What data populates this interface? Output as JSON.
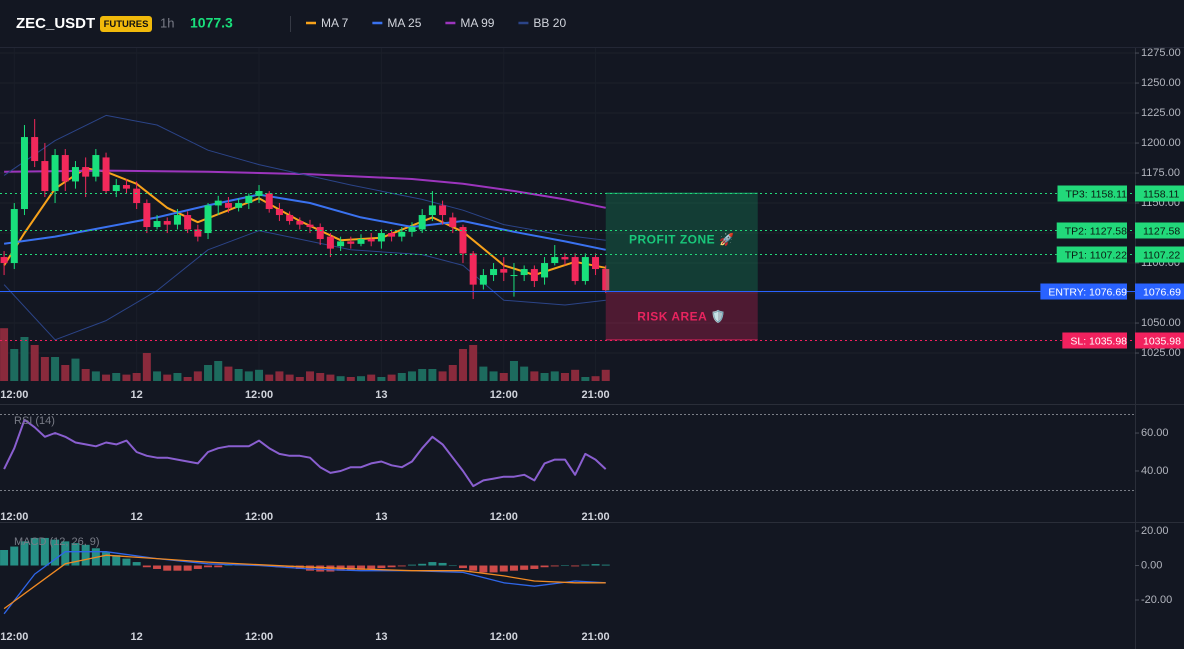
{
  "chart_data": [
    {
      "type": "candlestick",
      "title": "ZEC_USDT",
      "badge": "FUTURES",
      "interval": "1h",
      "last_price": 1077.3,
      "up_color": "#19e07c",
      "down_color": "#f2295b",
      "volume_up_color": "#1d6b5e",
      "volume_down_color": "#8a2a3c",
      "x": [
        11,
        12,
        13,
        14,
        15,
        16,
        17,
        18,
        19,
        20,
        21,
        22,
        23,
        24,
        25,
        26,
        27,
        28,
        29,
        30,
        31,
        32,
        33,
        34,
        35,
        36,
        37,
        38,
        39,
        40,
        41,
        42,
        43,
        44,
        45,
        46,
        47,
        48,
        49,
        50,
        51,
        52,
        53,
        54,
        55,
        56,
        57,
        58,
        59,
        60,
        61,
        62,
        63,
        64,
        65,
        66,
        67,
        68,
        69,
        70
      ],
      "open": [
        1105,
        1100,
        1145,
        1205,
        1185,
        1160,
        1190,
        1168,
        1180,
        1172,
        1188,
        1160,
        1165,
        1162,
        1150,
        1130,
        1135,
        1132,
        1140,
        1128,
        1125,
        1148,
        1150,
        1146,
        1150,
        1156,
        1158,
        1145,
        1140,
        1135,
        1132,
        1130,
        1122,
        1114,
        1118,
        1116,
        1120,
        1118,
        1125,
        1122,
        1126,
        1128,
        1140,
        1148,
        1138,
        1130,
        1108,
        1082,
        1090,
        1095,
        1090,
        1090,
        1095,
        1088,
        1100,
        1105,
        1105,
        1085,
        1105,
        1095
      ],
      "high": [
        1110,
        1150,
        1215,
        1220,
        1200,
        1195,
        1195,
        1185,
        1188,
        1195,
        1192,
        1170,
        1170,
        1168,
        1153,
        1140,
        1138,
        1145,
        1143,
        1132,
        1150,
        1156,
        1155,
        1154,
        1158,
        1165,
        1160,
        1150,
        1143,
        1138,
        1136,
        1133,
        1125,
        1122,
        1122,
        1124,
        1125,
        1128,
        1128,
        1130,
        1134,
        1145,
        1160,
        1152,
        1142,
        1132,
        1110,
        1095,
        1100,
        1105,
        1100,
        1098,
        1098,
        1105,
        1115,
        1108,
        1108,
        1108,
        1108,
        1098
      ],
      "low": [
        1090,
        1095,
        1140,
        1180,
        1155,
        1150,
        1160,
        1162,
        1155,
        1168,
        1158,
        1155,
        1158,
        1145,
        1125,
        1128,
        1125,
        1128,
        1125,
        1118,
        1120,
        1140,
        1142,
        1143,
        1145,
        1150,
        1142,
        1135,
        1132,
        1128,
        1125,
        1115,
        1105,
        1110,
        1112,
        1114,
        1114,
        1112,
        1118,
        1118,
        1122,
        1125,
        1135,
        1132,
        1125,
        1100,
        1070,
        1078,
        1085,
        1085,
        1072,
        1085,
        1080,
        1082,
        1098,
        1098,
        1082,
        1082,
        1090,
        1075
      ],
      "close": [
        1100,
        1145,
        1205,
        1185,
        1160,
        1190,
        1168,
        1180,
        1172,
        1190,
        1160,
        1165,
        1162,
        1150,
        1130,
        1135,
        1132,
        1140,
        1128,
        1122,
        1148,
        1152,
        1146,
        1150,
        1156,
        1160,
        1145,
        1140,
        1135,
        1132,
        1130,
        1120,
        1112,
        1118,
        1116,
        1120,
        1118,
        1125,
        1122,
        1126,
        1130,
        1140,
        1148,
        1140,
        1130,
        1108,
        1082,
        1090,
        1095,
        1092,
        1090,
        1095,
        1085,
        1100,
        1105,
        1103,
        1085,
        1105,
        1095,
        1077.3
      ],
      "volume": [
        66,
        40,
        55,
        45,
        30,
        30,
        20,
        28,
        15,
        12,
        8,
        10,
        8,
        10,
        35,
        12,
        8,
        10,
        5,
        12,
        20,
        25,
        18,
        15,
        12,
        14,
        8,
        12,
        8,
        5,
        12,
        10,
        8,
        6,
        5,
        6,
        8,
        5,
        8,
        10,
        12,
        15,
        15,
        12,
        20,
        40,
        45,
        18,
        12,
        10,
        25,
        18,
        12,
        10,
        12,
        10,
        14,
        5,
        6,
        14
      ],
      "volume_lim": [
        0,
        100
      ],
      "series": [
        {
          "name": "MA 7",
          "color": "#f7a21b",
          "x": [
            11,
            13,
            16,
            19,
            21,
            24,
            27,
            30,
            36,
            40,
            44,
            48,
            53,
            56,
            60,
            63,
            67,
            70
          ],
          "values": [
            1098,
            1125,
            1162,
            1179,
            1176,
            1166,
            1146,
            1134,
            1154,
            1135,
            1119,
            1121,
            1138,
            1126,
            1098,
            1090,
            1101,
            1096
          ]
        },
        {
          "name": "MA 25",
          "color": "#3a72f0",
          "x": [
            11,
            16,
            21,
            26,
            31,
            36,
            41,
            46,
            51,
            56,
            61,
            66,
            70
          ],
          "values": [
            1116,
            1122,
            1130,
            1138,
            1148,
            1157,
            1150,
            1138,
            1130,
            1135,
            1126,
            1118,
            1111
          ]
        },
        {
          "name": "MA 99",
          "color": "#9c35bd",
          "x": [
            11,
            21,
            31,
            41,
            51,
            56,
            61,
            66,
            70
          ],
          "values": [
            1176,
            1177,
            1176,
            1174,
            1170,
            1166,
            1160,
            1153,
            1146
          ]
        },
        {
          "name": "BB 20",
          "color": "#2b4488",
          "x": [
            11,
            16,
            21,
            26,
            31,
            36,
            45,
            52,
            56,
            60,
            66,
            70
          ],
          "values": [
            1173,
            1202,
            1223,
            1215,
            1194,
            1182,
            1165,
            1153,
            1144,
            1132,
            1123,
            1119
          ],
          "lower": [
            1082,
            1036,
            1052,
            1077,
            1111,
            1127,
            1111,
            1107,
            1098,
            1069,
            1065,
            1069
          ]
        }
      ],
      "levels": [
        {
          "label": "TP3: 1158.11",
          "value": 1158.11,
          "color": "#22d97a",
          "style": "dotted"
        },
        {
          "label": "TP2: 1127.58",
          "value": 1127.58,
          "color": "#22d97a",
          "style": "dotted"
        },
        {
          "label": "TP1: 1107.22",
          "value": 1107.22,
          "color": "#22d97a",
          "style": "dotted"
        },
        {
          "label": "ENTRY: 1076.69",
          "value": 1076.69,
          "color": "#2962ff",
          "style": "solid"
        },
        {
          "label": "SL: 1035.98",
          "value": 1035.98,
          "color": "#f2215e",
          "style": "dotted"
        }
      ],
      "zones": [
        {
          "label": "PROFIT ZONE 🚀",
          "color": "#19c77a"
        },
        {
          "label": "RISK AREA 🛡️",
          "color": "#e8245f"
        }
      ],
      "xlim": [
        10.6,
        121.9
      ],
      "xticks": [
        {
          "value": 12,
          "label": "12:00"
        },
        {
          "value": 24,
          "label": "12"
        },
        {
          "value": 36,
          "label": "12:00"
        },
        {
          "value": 48,
          "label": "13"
        },
        {
          "value": 60,
          "label": "12:00"
        },
        {
          "value": 69,
          "label": "21:00"
        }
      ],
      "ylim": [
        1001.7,
        1279.2
      ],
      "yticks": [
        {
          "value": 1025,
          "label": "1025.00"
        },
        {
          "value": 1050,
          "label": "1050.00"
        },
        {
          "value": 1075,
          "label": "1075.00"
        },
        {
          "value": 1100,
          "label": "1100.00"
        },
        {
          "value": 1125,
          "label": "1125.00"
        },
        {
          "value": 1150,
          "label": "1150.00"
        },
        {
          "value": 1175,
          "label": "1175.00"
        },
        {
          "value": 1200,
          "label": "1200.00"
        },
        {
          "value": 1225,
          "label": "1225.00"
        },
        {
          "value": 1250,
          "label": "1250.00"
        },
        {
          "value": 1275,
          "label": "1275.00"
        }
      ],
      "grid": true
    },
    {
      "type": "line",
      "title": "RSI (14)",
      "color": "#8a5fd0",
      "x": [
        11,
        12,
        13,
        14,
        15,
        16,
        17,
        18,
        19,
        20,
        21,
        22,
        23,
        24,
        25,
        26,
        27,
        28,
        29,
        30,
        31,
        32,
        33,
        34,
        35,
        36,
        37,
        38,
        39,
        40,
        41,
        42,
        43,
        44,
        45,
        46,
        47,
        48,
        49,
        50,
        51,
        52,
        53,
        54,
        55,
        56,
        57,
        58,
        59,
        60,
        61,
        62,
        63,
        64,
        65,
        66,
        67,
        68,
        69,
        70
      ],
      "values": [
        41,
        52,
        67,
        63,
        58,
        60,
        58,
        55,
        54,
        53,
        55,
        54,
        56,
        50,
        48,
        47,
        47,
        46,
        45,
        44,
        50,
        52,
        53,
        53,
        53,
        56,
        52,
        49,
        48,
        48,
        47,
        42,
        39,
        40,
        42,
        42,
        44,
        45,
        43,
        42,
        45,
        52,
        58,
        54,
        47,
        40,
        32,
        35,
        36,
        37,
        37,
        38,
        35,
        44,
        46,
        46,
        38,
        49,
        46,
        41
      ],
      "bands": [
        70,
        30
      ],
      "xlim": [
        10.6,
        121.9
      ],
      "xticks": [
        {
          "value": 12,
          "label": "12:00"
        },
        {
          "value": 24,
          "label": "12"
        },
        {
          "value": 36,
          "label": "12:00"
        },
        {
          "value": 48,
          "label": "13"
        },
        {
          "value": 60,
          "label": "12:00"
        },
        {
          "value": 69,
          "label": "21:00"
        }
      ],
      "ylim": [
        21,
        73.2
      ],
      "yticks": [
        {
          "value": 40,
          "label": "40.00"
        },
        {
          "value": 60,
          "label": "60.00"
        }
      ]
    },
    {
      "type": "macd",
      "title": "MACD (12, 26, 9)",
      "up_color": "#2aa596",
      "down_color": "#ef5350",
      "x": [
        11,
        12,
        13,
        14,
        15,
        16,
        17,
        18,
        19,
        20,
        21,
        22,
        23,
        24,
        25,
        26,
        27,
        28,
        29,
        30,
        31,
        32,
        33,
        34,
        35,
        36,
        37,
        38,
        39,
        40,
        41,
        42,
        43,
        44,
        45,
        46,
        47,
        48,
        49,
        50,
        51,
        52,
        53,
        54,
        55,
        56,
        57,
        58,
        59,
        60,
        61,
        62,
        63,
        64,
        65,
        66,
        67,
        68,
        69,
        70
      ],
      "histogram": [
        9,
        11,
        14,
        16,
        16,
        15,
        14,
        13,
        12,
        10,
        8,
        6,
        4,
        2,
        -1,
        -2,
        -3,
        -3,
        -3,
        -2,
        -1,
        -1,
        0.5,
        0.8,
        0.5,
        0.3,
        -0.5,
        -1,
        -1.5,
        -2,
        -3,
        -3.5,
        -3.5,
        -3,
        -3,
        -2.5,
        -2,
        -1.5,
        -1,
        -0.5,
        0.5,
        1,
        2,
        1.5,
        0,
        -1.5,
        -3,
        -4,
        -4,
        -3.5,
        -3,
        -2.5,
        -2,
        -1,
        -0.5,
        0.3,
        -0.5,
        0.5,
        0.8,
        0.5
      ],
      "series": [
        {
          "color": "#2f66e8",
          "x": [
            11,
            14,
            17,
            21,
            26,
            31,
            36,
            41,
            46,
            51,
            56,
            60,
            63,
            67,
            70
          ],
          "values": [
            -28,
            -5,
            8,
            8,
            4,
            1,
            0,
            -2,
            -3,
            -3,
            -4,
            -10,
            -12,
            -9,
            -10
          ]
        },
        {
          "color": "#f08a24",
          "x": [
            11,
            14,
            17,
            21,
            26,
            31,
            36,
            41,
            46,
            51,
            56,
            60,
            63,
            67,
            70
          ],
          "values": [
            -25,
            -12,
            1,
            6,
            4,
            2,
            0.5,
            -1,
            -2,
            -3,
            -3,
            -6,
            -9,
            -10,
            -10
          ]
        }
      ],
      "xlim": [
        10.6,
        121.9
      ],
      "xticks": [
        {
          "value": 12,
          "label": "12:00"
        },
        {
          "value": 24,
          "label": "12"
        },
        {
          "value": 36,
          "label": "12:00"
        },
        {
          "value": 48,
          "label": "13"
        },
        {
          "value": 60,
          "label": "12:00"
        },
        {
          "value": 69,
          "label": "21:00"
        }
      ],
      "ylim": [
        -34.5,
        23.5
      ],
      "yticks": [
        {
          "value": -20,
          "label": "-20.00"
        },
        {
          "value": 0,
          "label": "0.00"
        },
        {
          "value": 20,
          "label": "20.00"
        }
      ]
    }
  ]
}
